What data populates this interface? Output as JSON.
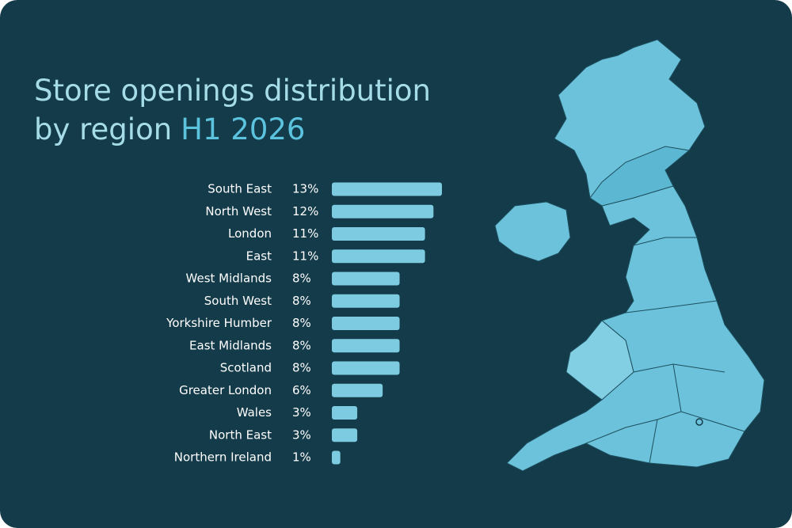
{
  "chart_data": {
    "type": "bar",
    "orientation": "horizontal",
    "title": "Store openings distribution by region",
    "title_period": "H1 2026",
    "categories": [
      "South East",
      "North West",
      "London",
      "East",
      "West Midlands",
      "South West",
      "Yorkshire Humber",
      "East Midlands",
      "Scotland",
      "Greater London",
      "Wales",
      "North East",
      "Northern Ireland"
    ],
    "values": [
      13,
      12,
      11,
      11,
      8,
      8,
      8,
      8,
      8,
      6,
      3,
      3,
      1
    ],
    "value_labels": [
      "13%",
      "12%",
      "11%",
      "11%",
      "8%",
      "8%",
      "8%",
      "8%",
      "8%",
      "6%",
      "3%",
      "3%",
      "1%"
    ],
    "color": "#7ccbe0"
  }
}
